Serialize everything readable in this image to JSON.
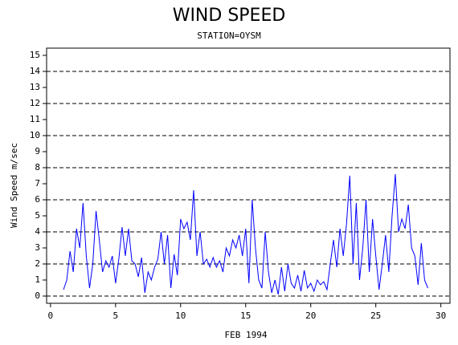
{
  "chart_data": {
    "type": "line",
    "title": "WIND SPEED",
    "subtitle": "STATION=OYSM",
    "x_label": "FEB 1994",
    "y_label": "Wind Speed m/sec",
    "x": [
      1,
      1.25,
      1.5,
      1.75,
      2,
      2.25,
      2.5,
      2.75,
      3,
      3.25,
      3.5,
      3.75,
      4,
      4.25,
      4.5,
      4.75,
      5,
      5.25,
      5.5,
      5.75,
      6,
      6.25,
      6.5,
      6.75,
      7,
      7.25,
      7.5,
      7.75,
      8,
      8.25,
      8.5,
      8.75,
      9,
      9.25,
      9.5,
      9.75,
      10,
      10.25,
      10.5,
      10.75,
      11,
      11.25,
      11.5,
      11.75,
      12,
      12.25,
      12.5,
      12.75,
      13,
      13.25,
      13.5,
      13.75,
      14,
      14.25,
      14.5,
      14.75,
      15,
      15.25,
      15.5,
      15.75,
      16,
      16.25,
      16.5,
      16.75,
      17,
      17.25,
      17.5,
      17.75,
      18,
      18.25,
      18.5,
      18.75,
      19,
      19.25,
      19.5,
      19.75,
      20,
      20.25,
      20.5,
      20.75,
      21,
      21.25,
      21.5,
      21.75,
      22,
      22.25,
      22.5,
      22.75,
      23,
      23.25,
      23.5,
      23.75,
      24,
      24.25,
      24.5,
      24.75,
      25,
      25.25,
      25.5,
      25.75,
      26,
      26.25,
      26.5,
      26.75,
      27,
      27.25,
      27.5,
      27.75,
      28,
      28.25,
      28.5,
      28.75,
      29
    ],
    "series": [
      {
        "color": "#0000ff",
        "values": [
          0.4,
          1.0,
          2.8,
          1.5,
          4.2,
          3.0,
          5.8,
          2.5,
          0.5,
          2.0,
          5.3,
          3.5,
          1.5,
          2.2,
          1.8,
          2.5,
          0.8,
          2.3,
          4.3,
          2.5,
          4.2,
          2.2,
          2.0,
          1.2,
          2.4,
          0.2,
          1.5,
          1.0,
          1.8,
          2.3,
          4.0,
          2.0,
          3.8,
          0.5,
          2.6,
          1.3,
          4.8,
          4.2,
          4.6,
          3.5,
          6.6,
          2.5,
          4.0,
          2.0,
          2.3,
          1.8,
          2.4,
          1.8,
          2.2,
          1.5,
          3.0,
          2.5,
          3.5,
          3.0,
          3.8,
          2.5,
          4.2,
          0.8,
          6.0,
          3.0,
          1.0,
          0.5,
          4.0,
          1.5,
          0.2,
          1.0,
          0.1,
          1.8,
          0.3,
          2.0,
          0.8,
          0.5,
          1.3,
          0.3,
          1.6,
          0.5,
          0.8,
          0.3,
          1.0,
          0.7,
          0.9,
          0.4,
          2.0,
          3.5,
          1.8,
          4.2,
          2.5,
          4.5,
          7.5,
          2.0,
          5.8,
          1.0,
          3.0,
          6.0,
          1.5,
          4.8,
          2.5,
          0.4,
          2.0,
          3.8,
          1.5,
          5.0,
          7.6,
          4.0,
          4.8,
          4.2,
          5.7,
          3.0,
          2.5,
          0.7,
          3.3,
          1.0,
          0.5
        ]
      }
    ],
    "xlim": [
      -0.3,
      30.7
    ],
    "ylim": [
      -0.45,
      15.45
    ],
    "xticks": [
      0,
      5,
      10,
      15,
      20,
      25,
      30
    ],
    "yticks": [
      0,
      1,
      2,
      3,
      4,
      5,
      6,
      7,
      8,
      9,
      10,
      11,
      12,
      13,
      14,
      15
    ],
    "grid_lines": [
      0,
      2,
      4,
      6,
      8,
      10,
      12,
      14
    ]
  }
}
